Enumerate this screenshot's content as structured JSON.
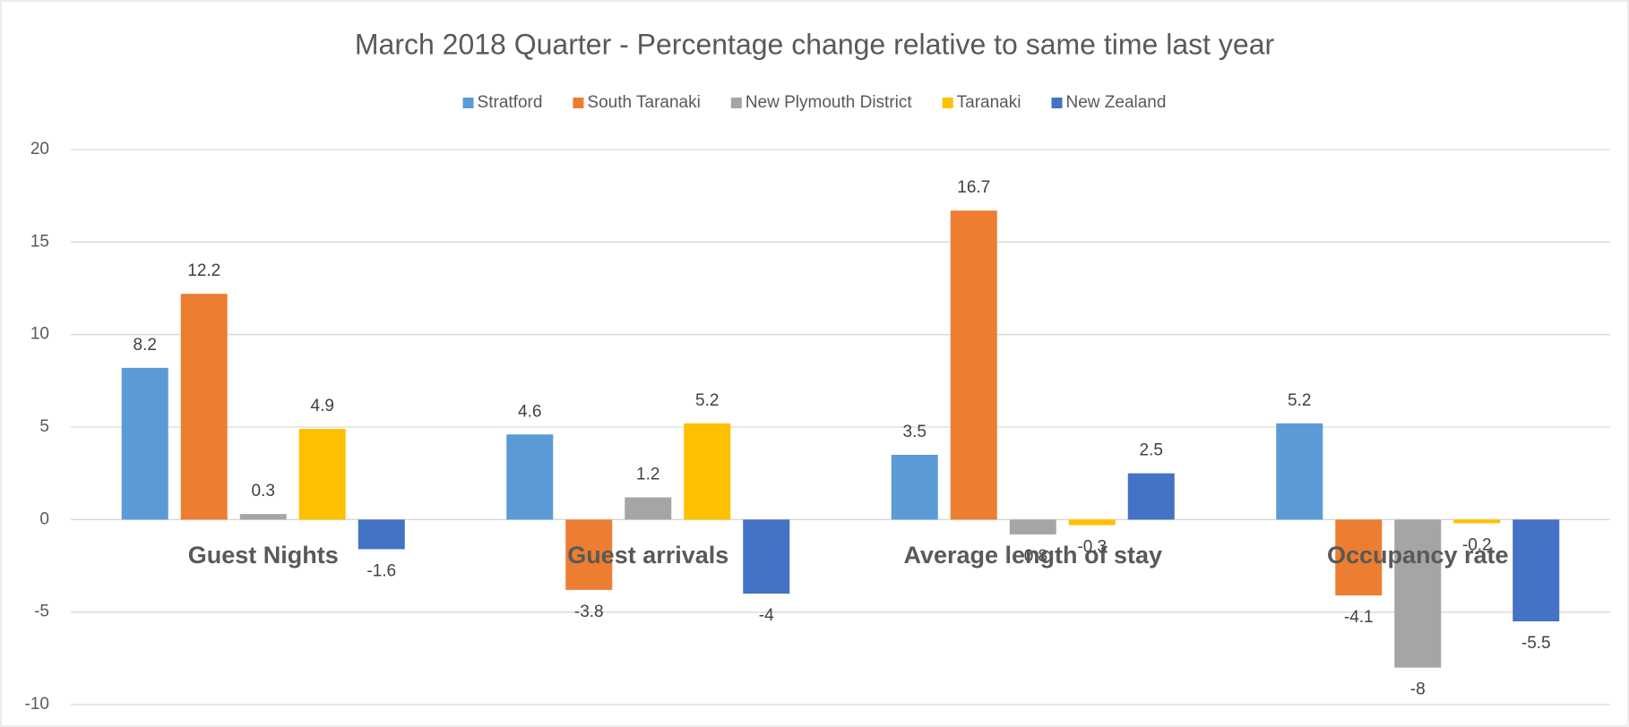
{
  "chart_data": {
    "type": "bar",
    "title": "March 2018 Quarter  - Percentage change relative to same time last year",
    "categories": [
      "Guest Nights",
      "Guest arrivals",
      "Average length of stay",
      "Occupancy rate"
    ],
    "series": [
      {
        "name": "Stratford",
        "color": "#5b9bd5",
        "values": [
          8.2,
          4.6,
          3.5,
          5.2
        ]
      },
      {
        "name": "South Taranaki",
        "color": "#ed7d31",
        "values": [
          12.2,
          -3.8,
          16.7,
          -4.1
        ]
      },
      {
        "name": "New Plymouth District",
        "color": "#a5a5a5",
        "values": [
          0.3,
          1.2,
          -0.8,
          -8
        ]
      },
      {
        "name": "Taranaki",
        "color": "#ffc000",
        "values": [
          4.9,
          5.2,
          -0.3,
          -0.2
        ]
      },
      {
        "name": "New Zealand",
        "color": "#4472c4",
        "values": [
          -1.6,
          -4,
          2.5,
          -5.5
        ]
      }
    ],
    "ylim": [
      -10,
      20
    ],
    "yticks": [
      -10,
      -5,
      0,
      5,
      10,
      15,
      20
    ],
    "grid": true,
    "legend": "top"
  }
}
